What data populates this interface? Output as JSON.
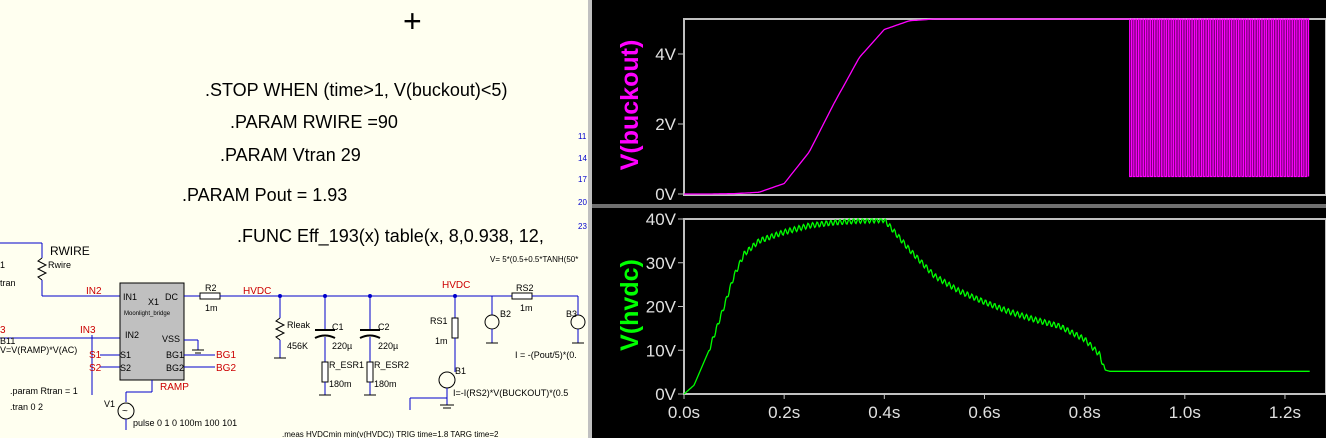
{
  "schematic": {
    "directives": {
      "stop": ".STOP WHEN (time>1, V(buckout)<5)",
      "rwire": ".PARAM RWIRE =90",
      "vtran": ".PARAM Vtran 29",
      "pout": ".PARAM Pout = 1.93",
      "func": ".FUNC Eff_193(x) table(x, 8,0.938, 12,",
      "vexpr": "V= 5*(0.5+0.5*TANH(50*",
      "param_rtran": ".param Rtran = 1",
      "tran": ".tran  0 2",
      "meas": ".meas HVDCmin  min(v(HVDC)) TRIG time=1.8 TARG time=2",
      "cursor": "+"
    },
    "components": {
      "rwire_title": "RWIRE",
      "rwire_label": "Rwire",
      "x1": "X1",
      "x1_sub": "Moonlight_bridge",
      "pin_in1": "IN1",
      "pin_in2": "IN2",
      "pin_dc": "DC",
      "pin_vss": "VSS",
      "pin_s1": "S1",
      "pin_s2": "S2",
      "pin_bg1": "BG1",
      "pin_bg2": "BG2",
      "r2": "R2",
      "r2_val": "1m",
      "rleak": "Rleak",
      "rleak_val": "456K",
      "c1": "C1",
      "c1_val": "220µ",
      "c2": "C2",
      "c2_val": "220µ",
      "resr1": "R_ESR1",
      "resr1_val": "180m",
      "resr2": "R_ESR2",
      "resr2_val": "180m",
      "rs1": "RS1",
      "rs1_val": "1m",
      "rs2": "RS2",
      "rs2_val": "1m",
      "b1": "B1",
      "b1_expr": "I=-I(RS2)*V(BUCKOUT)*(0.5",
      "b2": "B2",
      "b3": "B3",
      "b2_expr": "I = -(Pout/5)*(0.",
      "v1": "V1",
      "v1_expr": "pulse 0 1 0 100m 100 101",
      "b11": "B11",
      "b11_expr": "V=V(RAMP)*V(AC)",
      "left_1": "1",
      "left_tran": "tran",
      "left_3": "3",
      "right_nums": [
        "11",
        "14",
        "17",
        "20",
        "23"
      ]
    },
    "nets": {
      "in2_label": "IN2",
      "in3_label": "IN3",
      "hvdc1": "HVDC",
      "hvdc2": "HVDC",
      "s1": "S1",
      "s2": "S2",
      "bg1": "BG1",
      "bg2": "BG2",
      "ramp": "RAMP"
    }
  },
  "waveform": {
    "panes": [
      {
        "label": "V(buckout)",
        "color": "#ff00ff",
        "yticks": [
          "4V",
          "2V",
          "0V"
        ]
      },
      {
        "label": "V(hvdc)",
        "color": "#00ff00",
        "yticks": [
          "40V",
          "30V",
          "20V",
          "10V",
          "0V"
        ]
      }
    ],
    "xticks": [
      "0.0s",
      "0.2s",
      "0.4s",
      "0.6s",
      "0.8s",
      "1.0s",
      "1.2s"
    ]
  },
  "chart_data": [
    {
      "type": "line",
      "series": [
        {
          "name": "V(buckout)",
          "x": [
            0,
            0.05,
            0.1,
            0.15,
            0.2,
            0.25,
            0.3,
            0.35,
            0.4,
            0.45,
            0.5,
            0.6,
            0.7,
            0.8,
            0.89
          ],
          "values": [
            0,
            0,
            0.01,
            0.05,
            0.3,
            1.2,
            2.6,
            3.9,
            4.7,
            4.95,
            5.0,
            5.0,
            5.0,
            5.0,
            5.0
          ]
        }
      ],
      "oscillation": {
        "x_start": 0.89,
        "x_end": 1.25,
        "min": 0.5,
        "max": 5.0
      },
      "ylim": [
        0,
        5
      ],
      "yticks": [
        0,
        2,
        4
      ],
      "xlim": [
        0,
        1.25
      ]
    },
    {
      "type": "line",
      "series": [
        {
          "name": "V(hvdc)",
          "x": [
            0,
            0.02,
            0.05,
            0.08,
            0.1,
            0.12,
            0.15,
            0.2,
            0.25,
            0.3,
            0.35,
            0.4,
            0.45,
            0.5,
            0.55,
            0.6,
            0.65,
            0.7,
            0.75,
            0.8,
            0.83,
            0.84,
            0.85,
            0.9,
            1.0,
            1.1,
            1.25
          ],
          "values": [
            0,
            2,
            10,
            20,
            27,
            32,
            35,
            37,
            38.5,
            39.2,
            39.6,
            39.8,
            33,
            27,
            23.5,
            21,
            18.8,
            17,
            15.5,
            12.5,
            9,
            5.5,
            5.2,
            5.2,
            5.2,
            5.2,
            5.2
          ]
        }
      ],
      "ylim": [
        0,
        40
      ],
      "yticks": [
        0,
        10,
        20,
        30,
        40
      ],
      "xlim": [
        0,
        1.25
      ],
      "xticks": [
        0,
        0.2,
        0.4,
        0.6,
        0.8,
        1.0,
        1.2
      ]
    }
  ]
}
